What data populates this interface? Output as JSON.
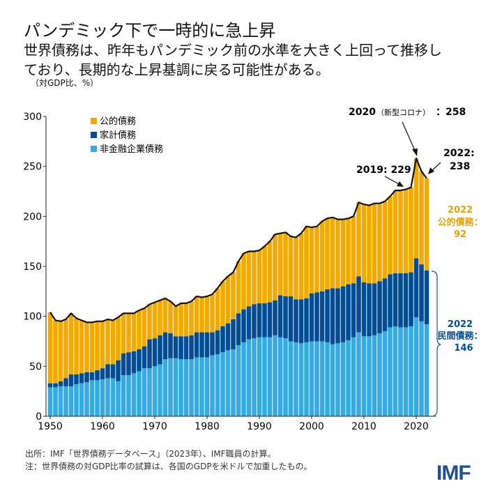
{
  "header": {
    "title": "パンデミック下で一時的に急上昇",
    "subtitle_line1": "世界債務は、昨年もパンデミック前の水準を大きく上回って推移し",
    "subtitle_line2": "ており、長期的な上昇基調に戻る可能性がある。",
    "unit": "（対GDP比、%）"
  },
  "footer": {
    "source": "出所：IMF「世界債務データベース」（2023年）、IMF職員の計算。",
    "note": "注：世界債務の対GDP比率の試算は、各国のGDPを米ドルで加重したもの。",
    "logo": "IMF"
  },
  "colors": {
    "public": "#F2A900",
    "household": "#004C97",
    "corporate": "#35ABE2",
    "total_line": "#111111"
  },
  "chart_data": {
    "type": "bar",
    "stacked": true,
    "title": "",
    "xlabel": "",
    "ylabel": "",
    "ylim": [
      0,
      300
    ],
    "yticks": [
      0,
      50,
      100,
      150,
      200,
      250,
      300
    ],
    "xticks": [
      1950,
      1960,
      1970,
      1980,
      1990,
      2000,
      2010,
      2020
    ],
    "grid": false,
    "legend_position": "top-left",
    "x": [
      1950,
      1951,
      1952,
      1953,
      1954,
      1955,
      1956,
      1957,
      1958,
      1959,
      1960,
      1961,
      1962,
      1963,
      1964,
      1965,
      1966,
      1967,
      1968,
      1969,
      1970,
      1971,
      1972,
      1973,
      1974,
      1975,
      1976,
      1977,
      1978,
      1979,
      1980,
      1981,
      1982,
      1983,
      1984,
      1985,
      1986,
      1987,
      1988,
      1989,
      1990,
      1991,
      1992,
      1993,
      1994,
      1995,
      1996,
      1997,
      1998,
      1999,
      2000,
      2001,
      2002,
      2003,
      2004,
      2005,
      2006,
      2007,
      2008,
      2009,
      2010,
      2011,
      2012,
      2013,
      2014,
      2015,
      2016,
      2017,
      2018,
      2019,
      2020,
      2021,
      2022
    ],
    "series": [
      {
        "name": "非金融企業債務",
        "key": "corporate",
        "values": [
          29,
          29,
          30,
          30,
          30,
          32,
          33,
          34,
          36,
          36,
          37,
          38,
          38,
          35,
          41,
          41,
          43,
          45,
          48,
          48,
          50,
          52,
          57,
          58,
          58,
          57,
          57,
          57,
          59,
          59,
          59,
          61,
          62,
          64,
          66,
          67,
          71,
          74,
          77,
          78,
          79,
          79,
          79,
          81,
          79,
          78,
          75,
          74,
          73,
          74,
          75,
          75,
          75,
          74,
          72,
          73,
          74,
          76,
          79,
          84,
          80,
          80,
          81,
          83,
          85,
          89,
          90,
          89,
          89,
          90,
          99,
          95,
          92
        ]
      },
      {
        "name": "家計債務",
        "key": "household",
        "values": [
          4,
          4,
          5,
          8,
          12,
          10,
          10,
          10,
          8,
          10,
          11,
          14,
          14,
          21,
          22,
          23,
          22,
          22,
          22,
          29,
          28,
          29,
          27,
          25,
          22,
          23,
          23,
          24,
          25,
          25,
          25,
          23,
          24,
          26,
          27,
          30,
          32,
          33,
          33,
          34,
          34,
          34,
          35,
          35,
          42,
          42,
          45,
          43,
          44,
          44,
          48,
          49,
          50,
          53,
          56,
          55,
          56,
          56,
          54,
          56,
          54,
          53,
          52,
          52,
          53,
          53,
          53,
          54,
          54,
          54,
          59,
          57,
          54
        ]
      },
      {
        "name": "公的債務",
        "key": "public",
        "values": [
          71,
          63,
          60,
          59,
          61,
          56,
          53,
          50,
          50,
          49,
          47,
          45,
          44,
          43,
          40,
          39,
          38,
          39,
          38,
          35,
          36,
          35,
          34,
          32,
          30,
          33,
          33,
          34,
          36,
          35,
          36,
          38,
          42,
          45,
          47,
          47,
          52,
          56,
          55,
          53,
          53,
          57,
          61,
          66,
          62,
          64,
          60,
          62,
          66,
          72,
          66,
          66,
          70,
          71,
          71,
          69,
          67,
          66,
          67,
          74,
          78,
          78,
          80,
          78,
          77,
          78,
          83,
          83,
          84,
          85,
          100,
          93,
          92
        ]
      }
    ],
    "legend": [
      "公的債務",
      "家計債務",
      "非金融企業債務"
    ],
    "annotations": {
      "covid_year": "2020",
      "covid_note": "（新型コロナ）",
      "covid_value": "：258",
      "y2019": "2019: 229",
      "y2022_a": "2022:",
      "y2022_b": "238",
      "public_year": "2022",
      "public_label": "公的債務：",
      "public_value": "92",
      "private_year": "2022",
      "private_label": "民間債務：",
      "private_value": "146"
    }
  }
}
